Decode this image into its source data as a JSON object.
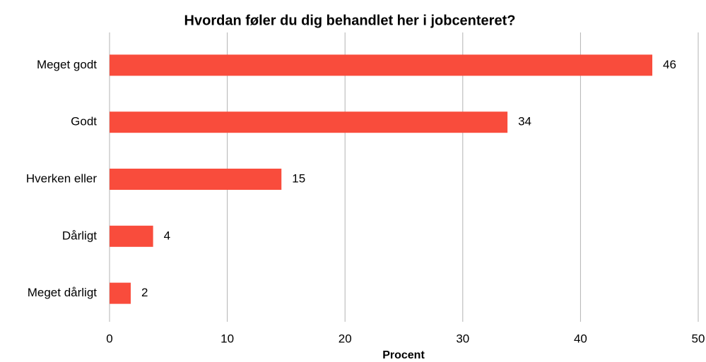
{
  "chart_data": {
    "type": "bar",
    "orientation": "horizontal",
    "title": "Hvordan føler du dig behandlet her i jobcenteret?",
    "x_label": "Procent",
    "categories": [
      "Meget godt",
      "Godt",
      "Hverken eller",
      "Dårligt",
      "Meget dårligt"
    ],
    "values": [
      46.1,
      33.8,
      14.6,
      3.7,
      1.8
    ],
    "value_labels": [
      "46",
      "34",
      "15",
      "4",
      "2"
    ],
    "color": "#f94c3c",
    "xlim": [
      0,
      50
    ],
    "xticks": [
      0,
      10,
      20,
      30,
      40,
      50
    ],
    "grid": true
  }
}
